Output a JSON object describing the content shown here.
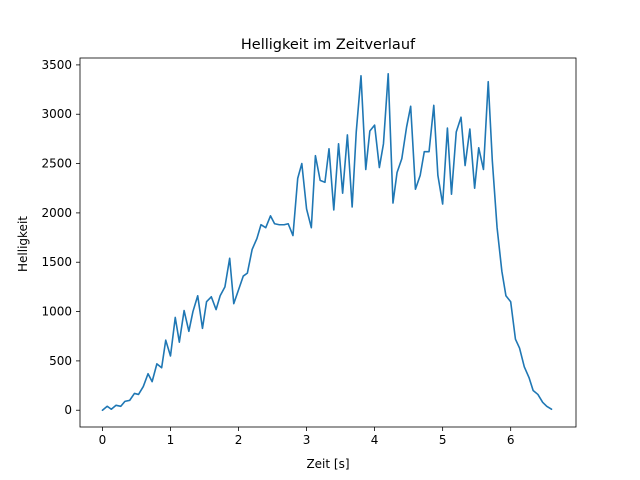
{
  "chart_data": {
    "type": "line",
    "title": "Helligkeit im Zeitverlauf",
    "xlabel": "Zeit [s]",
    "ylabel": "Helligkeit",
    "xlim": [
      -0.33,
      6.96
    ],
    "ylim": [
      -170,
      3570
    ],
    "xticks": [
      0,
      1,
      2,
      3,
      4,
      5,
      6
    ],
    "xtick_labels": [
      "0",
      "1",
      "2",
      "3",
      "4",
      "5",
      "6"
    ],
    "yticks": [
      0,
      500,
      1000,
      1500,
      2000,
      2500,
      3000,
      3500
    ],
    "ytick_labels": [
      "0",
      "500",
      "1000",
      "1500",
      "2000",
      "2500",
      "3000",
      "3500"
    ],
    "grid": false,
    "legend": "none",
    "color": "#1f77b4",
    "series": [
      {
        "x": [
          0.0,
          0.07,
          0.13,
          0.2,
          0.27,
          0.33,
          0.4,
          0.47,
          0.53,
          0.6,
          0.67,
          0.73,
          0.8,
          0.87,
          0.93,
          1.0,
          1.07,
          1.13,
          1.2,
          1.27,
          1.33,
          1.4,
          1.47,
          1.53,
          1.6,
          1.67,
          1.73,
          1.8,
          1.87,
          1.93,
          2.0,
          2.07,
          2.13,
          2.2,
          2.27,
          2.33,
          2.4,
          2.47,
          2.53,
          2.6,
          2.67,
          2.73,
          2.8,
          2.87,
          2.93,
          3.0,
          3.07,
          3.13,
          3.2,
          3.27,
          3.33,
          3.4,
          3.47,
          3.53,
          3.6,
          3.67,
          3.73,
          3.8,
          3.87,
          3.93,
          4.0,
          4.07,
          4.13,
          4.2,
          4.27,
          4.33,
          4.4,
          4.47,
          4.53,
          4.6,
          4.67,
          4.73,
          4.8,
          4.87,
          4.93,
          5.0,
          5.07,
          5.13,
          5.2,
          5.27,
          5.33,
          5.4,
          5.47,
          5.53,
          5.6,
          5.67,
          5.73,
          5.8,
          5.87,
          5.93,
          6.0,
          6.07,
          6.13,
          6.2,
          6.27,
          6.33,
          6.4,
          6.47,
          6.53,
          6.6
        ],
        "y": [
          0,
          40,
          10,
          50,
          40,
          90,
          100,
          170,
          160,
          240,
          370,
          290,
          470,
          430,
          710,
          550,
          940,
          690,
          1010,
          800,
          1000,
          1160,
          830,
          1100,
          1150,
          1020,
          1160,
          1250,
          1540,
          1080,
          1220,
          1360,
          1390,
          1630,
          1740,
          1880,
          1850,
          1970,
          1890,
          1880,
          1880,
          1890,
          1770,
          2350,
          2500,
          2040,
          1850,
          2580,
          2330,
          2310,
          2650,
          2030,
          2700,
          2200,
          2790,
          2060,
          2820,
          3390,
          2440,
          2830,
          2890,
          2460,
          2700,
          3410,
          2100,
          2410,
          2550,
          2870,
          3080,
          2240,
          2380,
          2620,
          2620,
          3090,
          2380,
          2090,
          2860,
          2190,
          2820,
          2970,
          2480,
          2850,
          2250,
          2660,
          2440,
          3330,
          2530,
          1850,
          1410,
          1160,
          1100,
          720,
          630,
          440,
          330,
          200,
          160,
          80,
          40,
          10
        ]
      }
    ]
  }
}
